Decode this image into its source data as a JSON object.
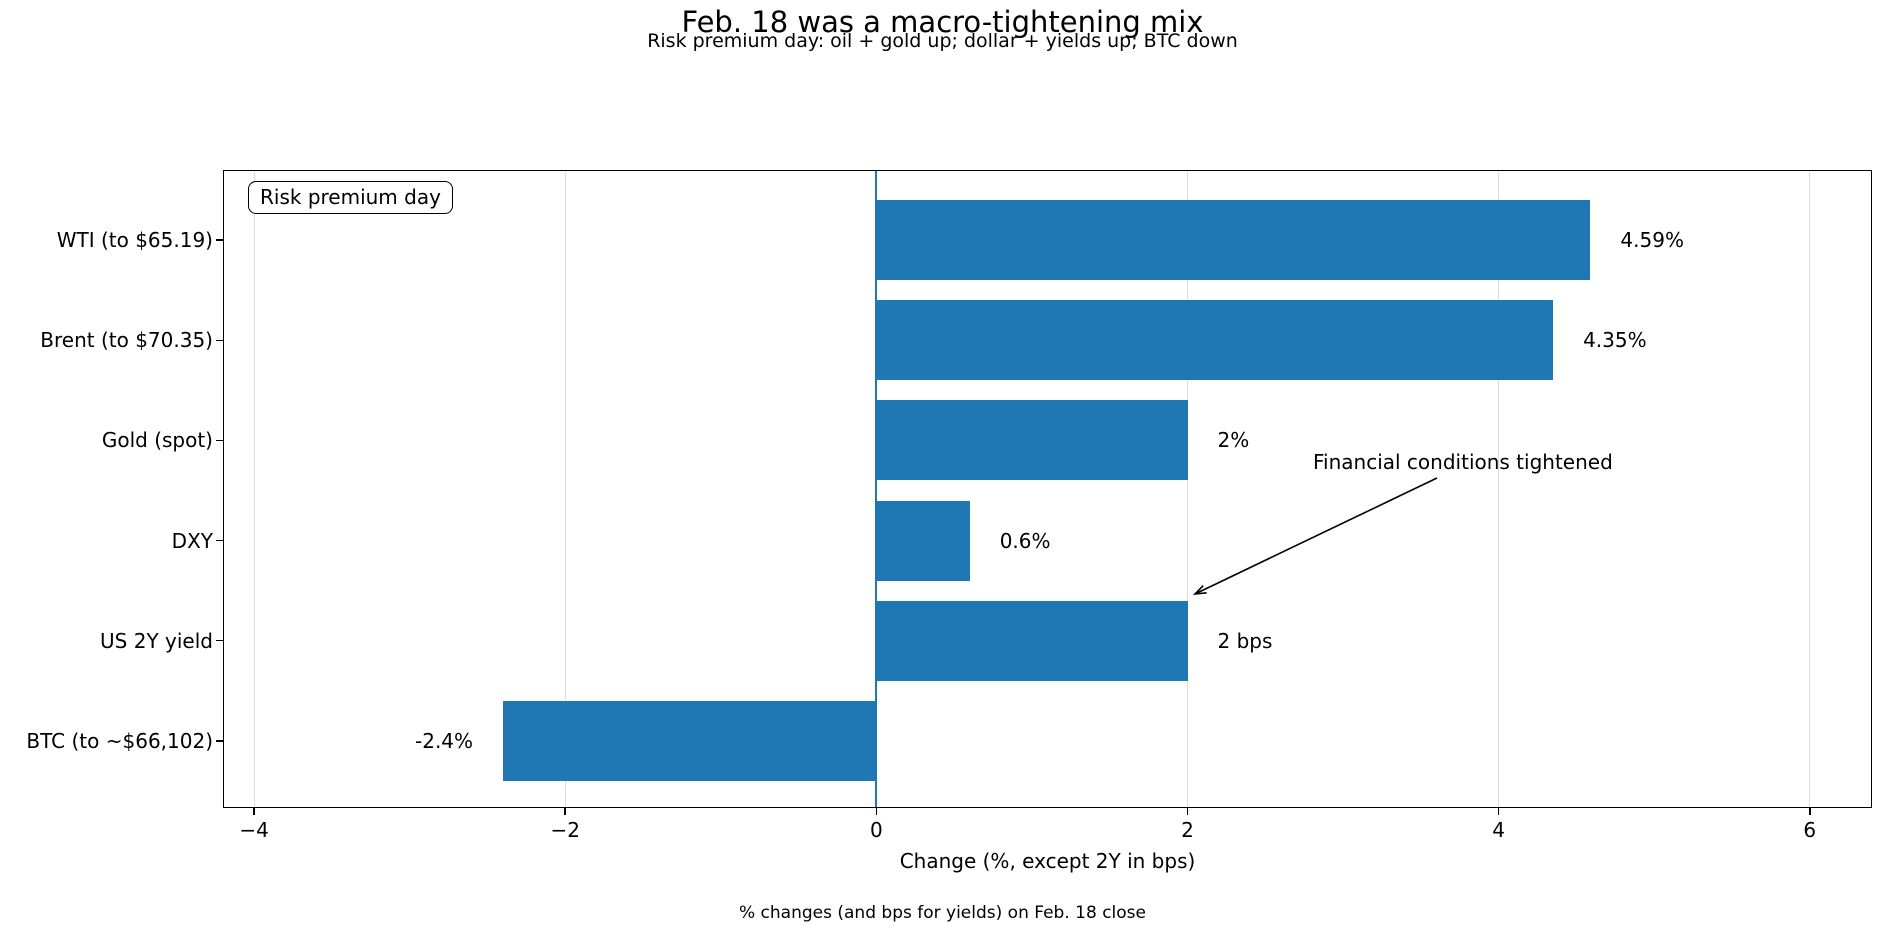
{
  "chart_data": {
    "type": "bar",
    "orientation": "horizontal",
    "title": "Feb. 18 was a macro-tightening mix",
    "subtitle": "Risk premium day: oil + gold up; dollar + yields up; BTC down",
    "footnote": "% changes (and bps for yields) on Feb. 18 close",
    "xlabel": "Change (%, except 2Y in bps)",
    "categories": [
      "WTI (to $65.19)",
      "Brent (to $70.35)",
      "Gold (spot)",
      "DXY",
      "US 2Y yield",
      "BTC (to ~$66,102)"
    ],
    "values": [
      4.59,
      4.35,
      2,
      0.6,
      2,
      -2.4
    ],
    "value_labels": [
      "4.59%",
      "4.35%",
      "2%",
      "0.6%",
      "2 bps",
      "-2.4%"
    ],
    "xlim": [
      -4.2,
      6.4
    ],
    "xticks": [
      -4,
      -2,
      0,
      2,
      4,
      6
    ],
    "xtick_labels": [
      "−4",
      "−2",
      "0",
      "2",
      "4",
      "6"
    ],
    "grid": true,
    "legend": {
      "label": "Risk premium day",
      "position": "upper-left"
    },
    "annotation": {
      "text": "Financial conditions tightened"
    },
    "colors": {
      "bar": "#1f77b4",
      "zero_line": "#1f77b4",
      "grid": "#dcdcdc",
      "text": "#000000",
      "background": "#ffffff"
    }
  }
}
